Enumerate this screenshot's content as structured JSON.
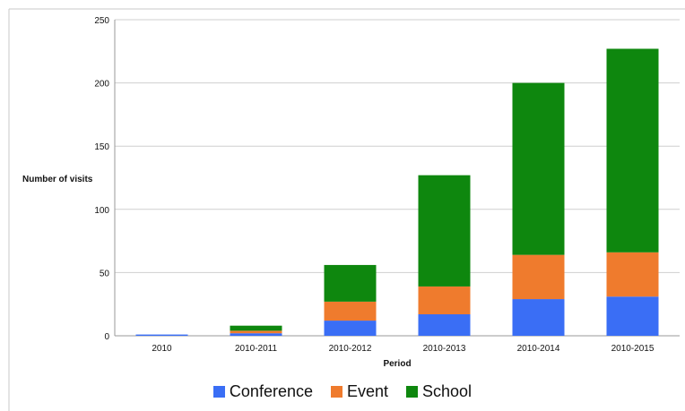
{
  "chart_data": {
    "type": "bar",
    "stacked": true,
    "title": "",
    "xlabel": "Period",
    "ylabel": "Number of visits",
    "ylim": [
      0,
      250
    ],
    "yticks": [
      0,
      50,
      100,
      150,
      200,
      250
    ],
    "grid": true,
    "legend_position": "bottom",
    "categories": [
      "2010",
      "2010-2011",
      "2010-2012",
      "2010-2013",
      "2010-2014",
      "2010-2015"
    ],
    "series": [
      {
        "name": "Conference",
        "color": "#3a6ef5",
        "values": [
          1,
          2,
          12,
          17,
          29,
          31
        ]
      },
      {
        "name": "Event",
        "color": "#ef7b2d",
        "values": [
          0,
          2,
          15,
          22,
          35,
          35
        ]
      },
      {
        "name": "School",
        "color": "#0e870e",
        "values": [
          0,
          4,
          29,
          88,
          136,
          161
        ]
      }
    ]
  }
}
